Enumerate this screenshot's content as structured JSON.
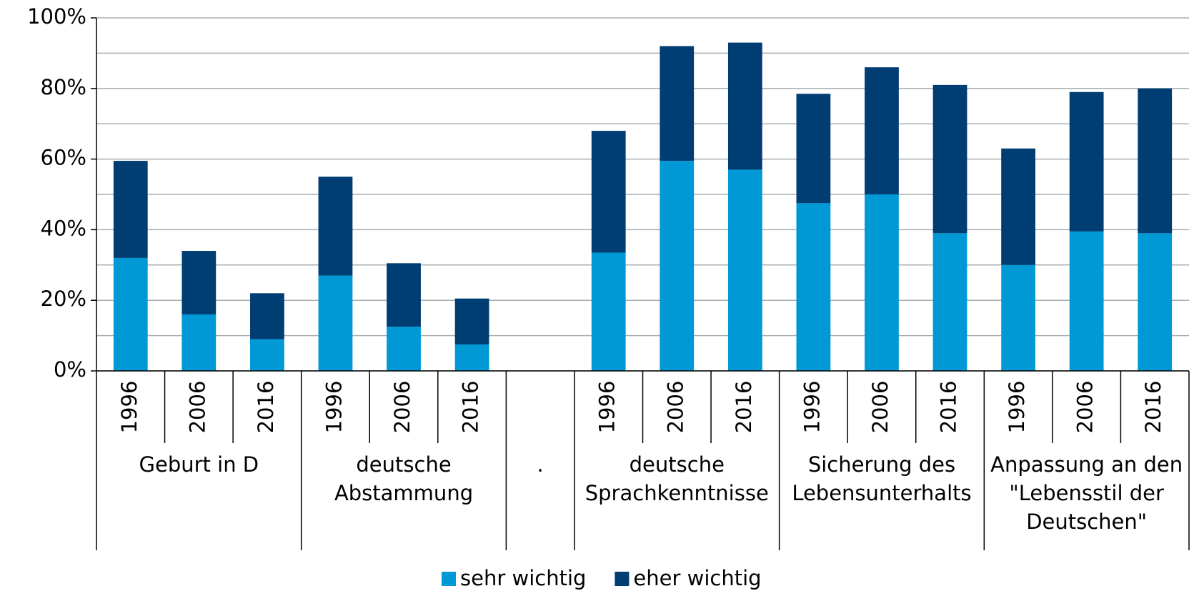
{
  "chart_data": {
    "type": "stacked_bar",
    "categories": [
      "1996",
      "2006",
      "2016",
      "1996",
      "2006",
      "2016",
      null,
      "1996",
      "2006",
      "2016",
      "1996",
      "2006",
      "2016",
      "1996",
      "2006",
      "2016"
    ],
    "groups": [
      {
        "label": "Geburt in D",
        "size": 3
      },
      {
        "label": "deutsche Abstammung",
        "size": 3
      },
      {
        "label": ".",
        "size": 1
      },
      {
        "label": "deutsche Sprachkenntnisse",
        "size": 3
      },
      {
        "label": "Sicherung des Lebensunterhalts",
        "size": 3
      },
      {
        "label": "Anpassung an den \"Lebensstil der Deutschen\"",
        "size": 3
      }
    ],
    "series": [
      {
        "name": "sehr wichtig",
        "color": "#0099d6",
        "values": [
          32,
          16,
          9,
          27,
          12.5,
          7.5,
          null,
          33.5,
          59.5,
          57,
          47.5,
          50,
          39,
          30,
          39.5,
          39
        ]
      },
      {
        "name": "eher wichtig",
        "color": "#003d73",
        "values": [
          27.5,
          18,
          13,
          28,
          18,
          13,
          null,
          34.5,
          32.5,
          36,
          31,
          36,
          42,
          33,
          39.5,
          41
        ]
      }
    ],
    "ylim": [
      0,
      100
    ],
    "yticks": [
      {
        "value": 0,
        "label": "0%"
      },
      {
        "value": 20,
        "label": "20%"
      },
      {
        "value": 40,
        "label": "40%"
      },
      {
        "value": 60,
        "label": "60%"
      },
      {
        "value": 80,
        "label": "80%"
      },
      {
        "value": 100,
        "label": "100%"
      }
    ],
    "yminor": [
      10,
      30,
      50,
      70,
      90
    ],
    "grid": true,
    "legend": "bottom"
  }
}
